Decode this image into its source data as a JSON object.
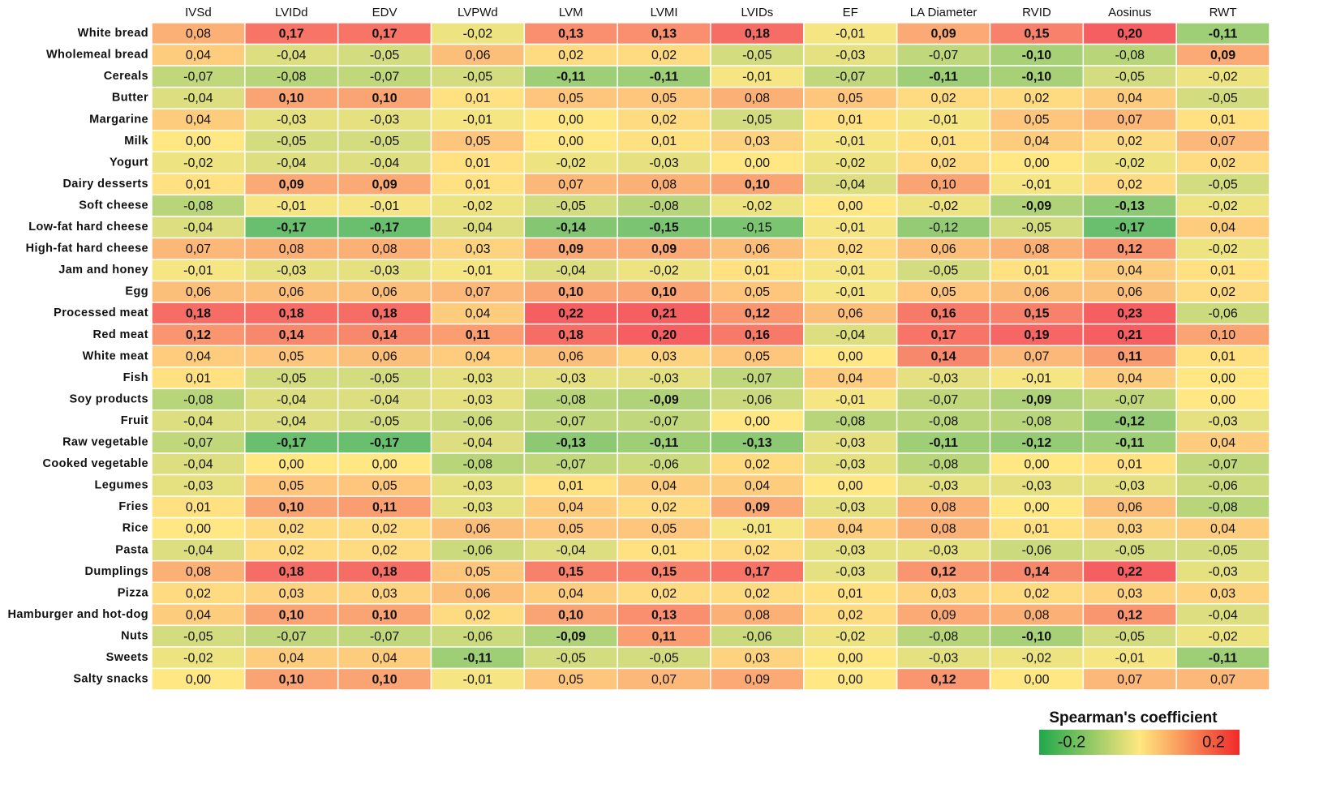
{
  "chart_data": {
    "type": "heatmap",
    "columns": [
      "IVSd",
      "LVIDd",
      "EDV",
      "LVPWd",
      "LVM",
      "LVMI",
      "LVIDs",
      "EF",
      "LA Diameter",
      "RVID",
      "Aosinus",
      "RWT"
    ],
    "rows": [
      "White bread",
      "Wholemeal bread",
      "Cereals",
      "Butter",
      "Margarine",
      "Milk",
      "Yogurt",
      "Dairy desserts",
      "Soft cheese",
      "Low-fat hard cheese",
      "High-fat hard cheese",
      "Jam and honey",
      "Egg",
      "Processed meat",
      "Red meat",
      "White meat",
      "Fish",
      "Soy products",
      "Fruit",
      "Raw vegetable",
      "Cooked vegetable",
      "Legumes",
      "Fries",
      "Rice",
      "Pasta",
      "Dumplings",
      "Pizza",
      "Hamburger and hot-dog",
      "Nuts",
      "Sweets",
      "Salty snacks"
    ],
    "values": [
      [
        0.08,
        0.17,
        0.17,
        -0.02,
        0.13,
        0.13,
        0.18,
        -0.01,
        0.09,
        0.15,
        0.2,
        -0.11
      ],
      [
        0.04,
        -0.04,
        -0.05,
        0.06,
        0.02,
        0.02,
        -0.05,
        -0.03,
        -0.07,
        -0.1,
        -0.08,
        0.09
      ],
      [
        -0.07,
        -0.08,
        -0.07,
        -0.05,
        -0.11,
        -0.11,
        -0.01,
        -0.07,
        -0.11,
        -0.1,
        -0.05,
        -0.02
      ],
      [
        -0.04,
        0.1,
        0.1,
        0.01,
        0.05,
        0.05,
        0.08,
        0.05,
        0.02,
        0.02,
        0.04,
        -0.05
      ],
      [
        0.04,
        -0.03,
        -0.03,
        -0.01,
        0.0,
        0.02,
        -0.05,
        0.01,
        -0.01,
        0.05,
        0.07,
        0.01
      ],
      [
        0.0,
        -0.05,
        -0.05,
        0.05,
        0.0,
        0.01,
        0.03,
        -0.01,
        0.01,
        0.04,
        0.02,
        0.07
      ],
      [
        -0.02,
        -0.04,
        -0.04,
        0.01,
        -0.02,
        -0.03,
        0.0,
        -0.02,
        0.02,
        0.0,
        -0.02,
        0.02
      ],
      [
        0.01,
        0.09,
        0.09,
        0.01,
        0.07,
        0.08,
        0.1,
        -0.04,
        0.1,
        -0.01,
        0.02,
        -0.05
      ],
      [
        -0.08,
        -0.01,
        -0.01,
        -0.02,
        -0.05,
        -0.08,
        -0.02,
        0.0,
        -0.02,
        -0.09,
        -0.13,
        -0.02
      ],
      [
        -0.04,
        -0.17,
        -0.17,
        -0.04,
        -0.14,
        -0.15,
        -0.15,
        -0.01,
        -0.12,
        -0.05,
        -0.17,
        0.04
      ],
      [
        0.07,
        0.08,
        0.08,
        0.03,
        0.09,
        0.09,
        0.06,
        0.02,
        0.06,
        0.08,
        0.12,
        -0.02
      ],
      [
        -0.01,
        -0.03,
        -0.03,
        -0.01,
        -0.04,
        -0.02,
        0.01,
        -0.01,
        -0.05,
        0.01,
        0.04,
        0.01
      ],
      [
        0.06,
        0.06,
        0.06,
        0.07,
        0.1,
        0.1,
        0.05,
        -0.01,
        0.05,
        0.06,
        0.06,
        0.02
      ],
      [
        0.18,
        0.18,
        0.18,
        0.04,
        0.22,
        0.21,
        0.12,
        0.06,
        0.16,
        0.15,
        0.23,
        -0.06
      ],
      [
        0.12,
        0.14,
        0.14,
        0.11,
        0.18,
        0.2,
        0.16,
        -0.04,
        0.17,
        0.19,
        0.21,
        0.1
      ],
      [
        0.04,
        0.05,
        0.06,
        0.04,
        0.06,
        0.03,
        0.05,
        0.0,
        0.14,
        0.07,
        0.11,
        0.01
      ],
      [
        0.01,
        -0.05,
        -0.05,
        -0.03,
        -0.03,
        -0.03,
        -0.07,
        0.04,
        -0.03,
        -0.01,
        0.04,
        0.0
      ],
      [
        -0.08,
        -0.04,
        -0.04,
        -0.03,
        -0.08,
        -0.09,
        -0.06,
        -0.01,
        -0.07,
        -0.09,
        -0.07,
        0.0
      ],
      [
        -0.04,
        -0.04,
        -0.05,
        -0.06,
        -0.07,
        -0.07,
        0.0,
        -0.08,
        -0.08,
        -0.08,
        -0.12,
        -0.03
      ],
      [
        -0.07,
        -0.17,
        -0.17,
        -0.04,
        -0.13,
        -0.11,
        -0.13,
        -0.03,
        -0.11,
        -0.12,
        -0.11,
        0.04
      ],
      [
        -0.04,
        0.0,
        0.0,
        -0.08,
        -0.07,
        -0.06,
        0.02,
        -0.03,
        -0.08,
        0.0,
        0.01,
        -0.07
      ],
      [
        -0.03,
        0.05,
        0.05,
        -0.03,
        0.01,
        0.04,
        0.04,
        0.0,
        -0.03,
        -0.03,
        -0.03,
        -0.06
      ],
      [
        0.01,
        0.1,
        0.11,
        -0.03,
        0.04,
        0.02,
        0.09,
        -0.03,
        0.08,
        0.0,
        0.06,
        -0.08
      ],
      [
        0.0,
        0.02,
        0.02,
        0.06,
        0.05,
        0.05,
        -0.01,
        0.04,
        0.08,
        0.01,
        0.03,
        0.04
      ],
      [
        -0.04,
        0.02,
        0.02,
        -0.06,
        -0.04,
        0.01,
        0.02,
        -0.03,
        -0.03,
        -0.06,
        -0.05,
        -0.05
      ],
      [
        0.08,
        0.18,
        0.18,
        0.05,
        0.15,
        0.15,
        0.17,
        -0.03,
        0.12,
        0.14,
        0.22,
        -0.03
      ],
      [
        0.02,
        0.03,
        0.03,
        0.06,
        0.04,
        0.02,
        0.02,
        0.01,
        0.03,
        0.02,
        0.03,
        0.03
      ],
      [
        0.04,
        0.1,
        0.1,
        0.02,
        0.1,
        0.13,
        0.08,
        0.02,
        0.09,
        0.08,
        0.12,
        -0.04
      ],
      [
        -0.05,
        -0.07,
        -0.07,
        -0.06,
        -0.09,
        0.11,
        -0.06,
        -0.02,
        -0.08,
        -0.1,
        -0.05,
        -0.02
      ],
      [
        -0.02,
        0.04,
        0.04,
        -0.11,
        -0.05,
        -0.05,
        0.03,
        0.0,
        -0.03,
        -0.02,
        -0.01,
        -0.11
      ],
      [
        0.0,
        0.1,
        0.1,
        -0.01,
        0.05,
        0.07,
        0.09,
        0.0,
        0.12,
        0.0,
        0.07,
        0.07
      ]
    ],
    "value_labels": [
      [
        "0,08",
        "0,17",
        "0,17",
        "-0,02",
        "0,13",
        "0,13",
        "0,18",
        "-0,01",
        "0,09",
        "0,15",
        "0,20",
        "-0,11"
      ],
      [
        "0,04",
        "-0,04",
        "-0,05",
        "0,06",
        "0,02",
        "0,02",
        "-0,05",
        "-0,03",
        "-0,07",
        "-0,10",
        "-0,08",
        "0,09"
      ],
      [
        "-0,07",
        "-0,08",
        "-0,07",
        "-0,05",
        "-0,11",
        "-0,11",
        "-0,01",
        "-0,07",
        "-0,11",
        "-0,10",
        "-0,05",
        "-0,02"
      ],
      [
        "-0,04",
        "0,10",
        "0,10",
        "0,01",
        "0,05",
        "0,05",
        "0,08",
        "0,05",
        "0,02",
        "0,02",
        "0,04",
        "-0,05"
      ],
      [
        "0,04",
        "-0,03",
        "-0,03",
        "-0,01",
        "0,00",
        "0,02",
        "-0,05",
        "0,01",
        "-0,01",
        "0,05",
        "0,07",
        "0,01"
      ],
      [
        "0,00",
        "-0,05",
        "-0,05",
        "0,05",
        "0,00",
        "0,01",
        "0,03",
        "-0,01",
        "0,01",
        "0,04",
        "0,02",
        "0,07"
      ],
      [
        "-0,02",
        "-0,04",
        "-0,04",
        "0,01",
        "-0,02",
        "-0,03",
        "0,00",
        "-0,02",
        "0,02",
        "0,00",
        "-0,02",
        "0,02"
      ],
      [
        "0,01",
        "0,09",
        "0,09",
        "0,01",
        "0,07",
        "0,08",
        "0,10",
        "-0,04",
        "0,10",
        "-0,01",
        "0,02",
        "-0,05"
      ],
      [
        "-0,08",
        "-0,01",
        "-0,01",
        "-0,02",
        "-0,05",
        "-0,08",
        "-0,02",
        "0,00",
        "-0,02",
        "-0,09",
        "-0,13",
        "-0,02"
      ],
      [
        "-0,04",
        "-0,17",
        "-0,17",
        "-0,04",
        "-0,14",
        "-0,15",
        "-0,15",
        "-0,01",
        "-0,12",
        "-0,05",
        "-0,17",
        "0,04"
      ],
      [
        "0,07",
        "0,08",
        "0,08",
        "0,03",
        "0,09",
        "0,09",
        "0,06",
        "0,02",
        "0,06",
        "0,08",
        "0,12",
        "-0,02"
      ],
      [
        "-0,01",
        "-0,03",
        "-0,03",
        "-0,01",
        "-0,04",
        "-0,02",
        "0,01",
        "-0,01",
        "-0,05",
        "0,01",
        "0,04",
        "0,01"
      ],
      [
        "0,06",
        "0,06",
        "0,06",
        "0,07",
        "0,10",
        "0,10",
        "0,05",
        "-0,01",
        "0,05",
        "0,06",
        "0,06",
        "0,02"
      ],
      [
        "0,18",
        "0,18",
        "0,18",
        "0,04",
        "0,22",
        "0,21",
        "0,12",
        "0,06",
        "0,16",
        "0,15",
        "0,23",
        "-0,06"
      ],
      [
        "0,12",
        "0,14",
        "0,14",
        "0,11",
        "0,18",
        "0,20",
        "0,16",
        "-0,04",
        "0,17",
        "0,19",
        "0,21",
        "0,10"
      ],
      [
        "0,04",
        "0,05",
        "0,06",
        "0,04",
        "0,06",
        "0,03",
        "0,05",
        "0,00",
        "0,14",
        "0,07",
        "0,11",
        "0,01"
      ],
      [
        "0,01",
        "-0,05",
        "-0,05",
        "-0,03",
        "-0,03",
        "-0,03",
        "-0,07",
        "0,04",
        "-0,03",
        "-0,01",
        "0,04",
        "0,00"
      ],
      [
        "-0,08",
        "-0,04",
        "-0,04",
        "-0,03",
        "-0,08",
        "-0,09",
        "-0,06",
        "-0,01",
        "-0,07",
        "-0,09",
        "-0,07",
        "0,00"
      ],
      [
        "-0,04",
        "-0,04",
        "-0,05",
        "-0,06",
        "-0,07",
        "-0,07",
        "0,00",
        "-0,08",
        "-0,08",
        "-0,08",
        "-0,12",
        "-0,03"
      ],
      [
        "-0,07",
        "-0,17",
        "-0,17",
        "-0,04",
        "-0,13",
        "-0,11",
        "-0,13",
        "-0,03",
        "-0,11",
        "-0,12",
        "-0,11",
        "0,04"
      ],
      [
        "-0,04",
        "0,00",
        "0,00",
        "-0,08",
        "-0,07",
        "-0,06",
        "0,02",
        "-0,03",
        "-0,08",
        "0,00",
        "0,01",
        "-0,07"
      ],
      [
        "-0,03",
        "0,05",
        "0,05",
        "-0,03",
        "0,01",
        "0,04",
        "0,04",
        "0,00",
        "-0,03",
        "-0,03",
        "-0,03",
        "-0,06"
      ],
      [
        "0,01",
        "0,10",
        "0,11",
        "-0,03",
        "0,04",
        "0,02",
        "0,09",
        "-0,03",
        "0,08",
        "0,00",
        "0,06",
        "-0,08"
      ],
      [
        "0,00",
        "0,02",
        "0,02",
        "0,06",
        "0,05",
        "0,05",
        "-0,01",
        "0,04",
        "0,08",
        "0,01",
        "0,03",
        "0,04"
      ],
      [
        "-0,04",
        "0,02",
        "0,02",
        "-0,06",
        "-0,04",
        "0,01",
        "0,02",
        "-0,03",
        "-0,03",
        "-0,06",
        "-0,05",
        "-0,05"
      ],
      [
        "0,08",
        "0,18",
        "0,18",
        "0,05",
        "0,15",
        "0,15",
        "0,17",
        "-0,03",
        "0,12",
        "0,14",
        "0,22",
        "-0,03"
      ],
      [
        "0,02",
        "0,03",
        "0,03",
        "0,06",
        "0,04",
        "0,02",
        "0,02",
        "0,01",
        "0,03",
        "0,02",
        "0,03",
        "0,03"
      ],
      [
        "0,04",
        "0,10",
        "0,10",
        "0,02",
        "0,10",
        "0,13",
        "0,08",
        "0,02",
        "0,09",
        "0,08",
        "0,12",
        "-0,04"
      ],
      [
        "-0,05",
        "-0,07",
        "-0,07",
        "-0,06",
        "-0,09",
        "0,11",
        "-0,06",
        "-0,02",
        "-0,08",
        "-0,10",
        "-0,05",
        "-0,02"
      ],
      [
        "-0,02",
        "0,04",
        "0,04",
        "-0,11",
        "-0,05",
        "-0,05",
        "0,03",
        "0,00",
        "-0,03",
        "-0,02",
        "-0,01",
        "-0,11"
      ],
      [
        "0,00",
        "0,10",
        "0,10",
        "-0,01",
        "0,05",
        "0,07",
        "0,09",
        "0,00",
        "0,12",
        "0,00",
        "0,07",
        "0,07"
      ]
    ],
    "bold": [
      [
        false,
        true,
        true,
        false,
        true,
        true,
        true,
        false,
        true,
        true,
        true,
        true
      ],
      [
        false,
        false,
        false,
        false,
        false,
        false,
        false,
        false,
        false,
        true,
        false,
        true
      ],
      [
        false,
        false,
        false,
        false,
        true,
        true,
        false,
        false,
        true,
        true,
        false,
        false
      ],
      [
        false,
        true,
        true,
        false,
        false,
        false,
        false,
        false,
        false,
        false,
        false,
        false
      ],
      [
        false,
        false,
        false,
        false,
        false,
        false,
        false,
        false,
        false,
        false,
        false,
        false
      ],
      [
        false,
        false,
        false,
        false,
        false,
        false,
        false,
        false,
        false,
        false,
        false,
        false
      ],
      [
        false,
        false,
        false,
        false,
        false,
        false,
        false,
        false,
        false,
        false,
        false,
        false
      ],
      [
        false,
        true,
        true,
        false,
        false,
        false,
        true,
        false,
        false,
        false,
        false,
        false
      ],
      [
        false,
        false,
        false,
        false,
        false,
        false,
        false,
        false,
        false,
        true,
        true,
        false
      ],
      [
        false,
        true,
        true,
        false,
        true,
        true,
        false,
        false,
        false,
        false,
        true,
        false
      ],
      [
        false,
        false,
        false,
        false,
        true,
        true,
        false,
        false,
        false,
        false,
        true,
        false
      ],
      [
        false,
        false,
        false,
        false,
        false,
        false,
        false,
        false,
        false,
        false,
        false,
        false
      ],
      [
        false,
        false,
        false,
        false,
        true,
        true,
        false,
        false,
        false,
        false,
        false,
        false
      ],
      [
        true,
        true,
        true,
        false,
        true,
        true,
        true,
        false,
        true,
        true,
        true,
        false
      ],
      [
        true,
        true,
        true,
        true,
        true,
        true,
        true,
        false,
        true,
        true,
        true,
        false
      ],
      [
        false,
        false,
        false,
        false,
        false,
        false,
        false,
        false,
        true,
        false,
        true,
        false
      ],
      [
        false,
        false,
        false,
        false,
        false,
        false,
        false,
        false,
        false,
        false,
        false,
        false
      ],
      [
        false,
        false,
        false,
        false,
        false,
        true,
        false,
        false,
        false,
        true,
        false,
        false
      ],
      [
        false,
        false,
        false,
        false,
        false,
        false,
        false,
        false,
        false,
        false,
        true,
        false
      ],
      [
        false,
        true,
        true,
        false,
        true,
        true,
        true,
        false,
        true,
        true,
        true,
        false
      ],
      [
        false,
        false,
        false,
        false,
        false,
        false,
        false,
        false,
        false,
        false,
        false,
        false
      ],
      [
        false,
        false,
        false,
        false,
        false,
        false,
        false,
        false,
        false,
        false,
        false,
        false
      ],
      [
        false,
        true,
        true,
        false,
        false,
        false,
        true,
        false,
        false,
        false,
        false,
        false
      ],
      [
        false,
        false,
        false,
        false,
        false,
        false,
        false,
        false,
        false,
        false,
        false,
        false
      ],
      [
        false,
        false,
        false,
        false,
        false,
        false,
        false,
        false,
        false,
        false,
        false,
        false
      ],
      [
        false,
        true,
        true,
        false,
        true,
        true,
        true,
        false,
        true,
        true,
        true,
        false
      ],
      [
        false,
        false,
        false,
        false,
        false,
        false,
        false,
        false,
        false,
        false,
        false,
        false
      ],
      [
        false,
        true,
        true,
        false,
        true,
        true,
        false,
        false,
        false,
        false,
        true,
        false
      ],
      [
        false,
        false,
        false,
        false,
        true,
        true,
        false,
        false,
        false,
        true,
        false,
        false
      ],
      [
        false,
        false,
        false,
        true,
        false,
        false,
        false,
        false,
        false,
        false,
        false,
        true
      ],
      [
        false,
        true,
        true,
        false,
        false,
        false,
        false,
        false,
        true,
        false,
        false,
        false
      ]
    ],
    "colorbar_title": "Spearman's coefficient",
    "clim": [
      -0.2,
      0.2
    ],
    "cticks": [
      -0.2,
      0.2
    ],
    "colors": [
      "#4fb86a",
      "#ffe884",
      "#f55f62"
    ],
    "colorbar_colors": [
      "#1fa84a",
      "#ffe880",
      "#f02a2a"
    ]
  }
}
